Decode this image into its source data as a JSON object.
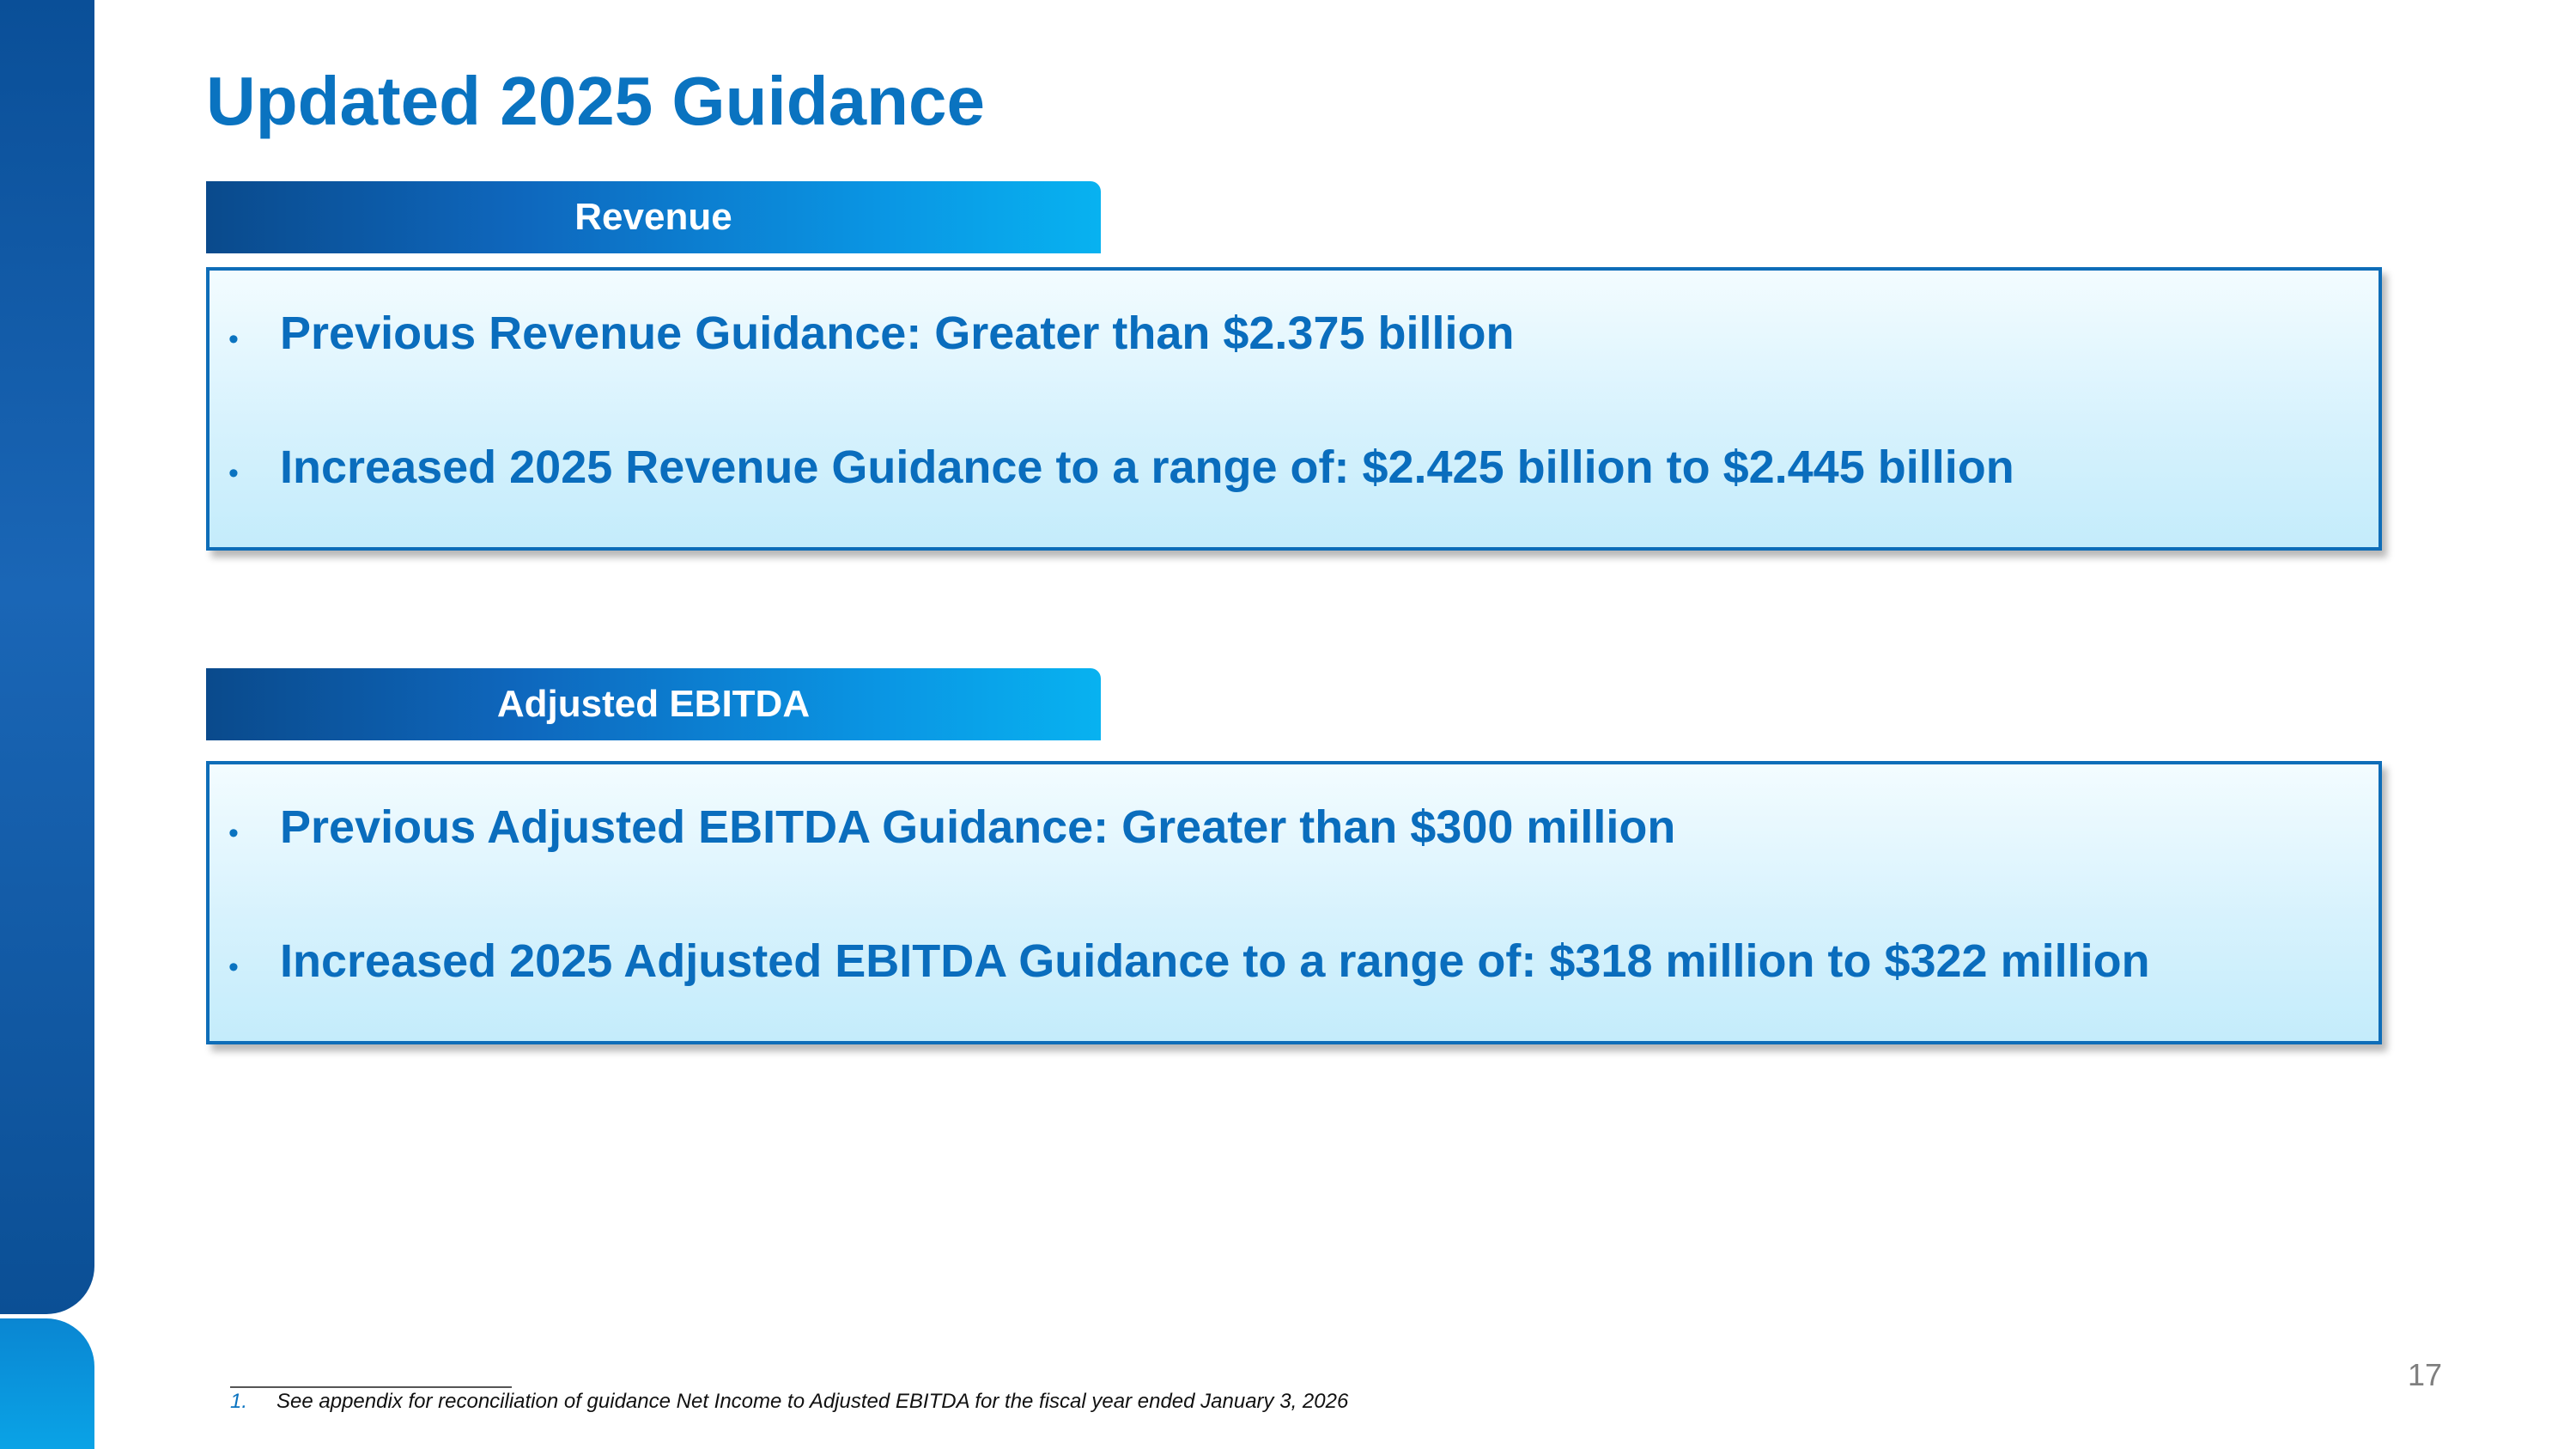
{
  "slide": {
    "title": "Updated 2025 Guidance",
    "page_number": "17"
  },
  "sections": {
    "revenue": {
      "tab_label": "Revenue",
      "bullets": [
        "Previous Revenue Guidance: Greater than $2.375 billion",
        "Increased 2025 Revenue Guidance to a range of: $2.425 billion to $2.445 billion"
      ]
    },
    "ebitda": {
      "tab_label": "Adjusted EBITDA",
      "bullets": [
        "Previous Adjusted EBITDA Guidance: Greater than $300 million",
        "Increased 2025 Adjusted EBITDA Guidance to a range of: $318 million to $322 million"
      ]
    }
  },
  "bullet_glyph": "•",
  "footnote": {
    "number": "1.",
    "text": "See appendix for reconciliation of guidance Net Income to Adjusted EBITDA for the fiscal year ended January 3, 2026"
  },
  "colors": {
    "title": "#0a73c0",
    "tab_gradient_start": "#0a4a8c",
    "tab_gradient_end": "#08b2f0",
    "box_border": "#0e6db8",
    "bullet_text": "#0a6dbd"
  }
}
